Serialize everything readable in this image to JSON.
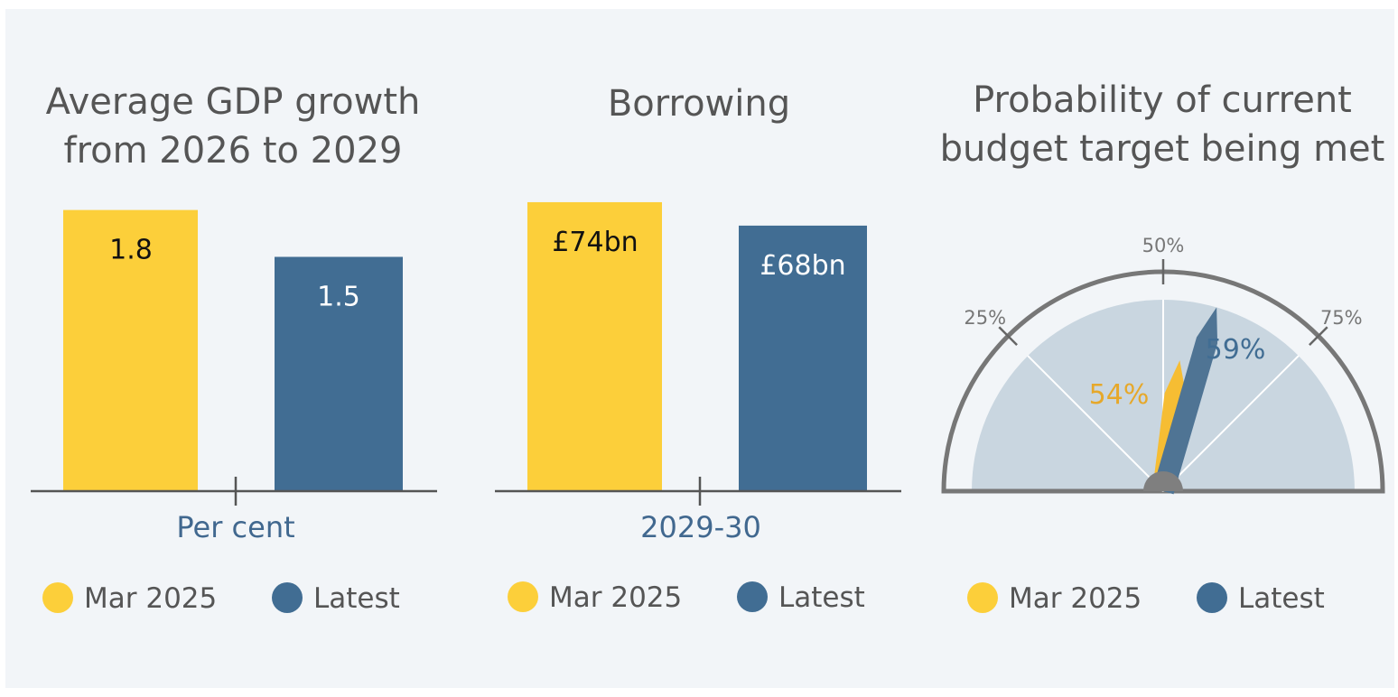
{
  "colors": {
    "mar": "#fccf3a",
    "latest": "#416d93",
    "gauge_needle_mar": "#f6bd33",
    "gauge_label_mar": "#e6a82a",
    "gauge_needle_latest": "#4f7494",
    "gauge_label_latest": "#416d93",
    "gauge_fill": "#c9d6e0",
    "gauge_rim": "#777777"
  },
  "chart_data": [
    {
      "type": "bar",
      "title": [
        "Average GDP growth",
        "from 2026 to 2029"
      ],
      "xlabel": "Per cent",
      "ylim": [
        0,
        2
      ],
      "series": [
        {
          "name": "Mar 2025",
          "value": 1.8,
          "label": "1.8"
        },
        {
          "name": "Latest",
          "value": 1.5,
          "label": "1.5"
        }
      ],
      "legend": [
        "Mar 2025",
        "Latest"
      ]
    },
    {
      "type": "bar",
      "title": [
        "Borrowing"
      ],
      "xlabel": "2029-30",
      "ylim": [
        0,
        80
      ],
      "series": [
        {
          "name": "Mar 2025",
          "value": 74,
          "label": "£74bn"
        },
        {
          "name": "Latest",
          "value": 68,
          "label": "£68bn"
        }
      ],
      "legend": [
        "Mar 2025",
        "Latest"
      ]
    },
    {
      "type": "gauge",
      "title": [
        "Probability of current",
        "budget target being met"
      ],
      "range": [
        0,
        100
      ],
      "ticks": [
        "25%",
        "50%",
        "75%"
      ],
      "tick_values": [
        25,
        50,
        75
      ],
      "series": [
        {
          "name": "Mar 2025",
          "value": 54,
          "label": "54%"
        },
        {
          "name": "Latest",
          "value": 59,
          "label": "59%"
        }
      ],
      "legend": [
        "Mar 2025",
        "Latest"
      ]
    }
  ]
}
